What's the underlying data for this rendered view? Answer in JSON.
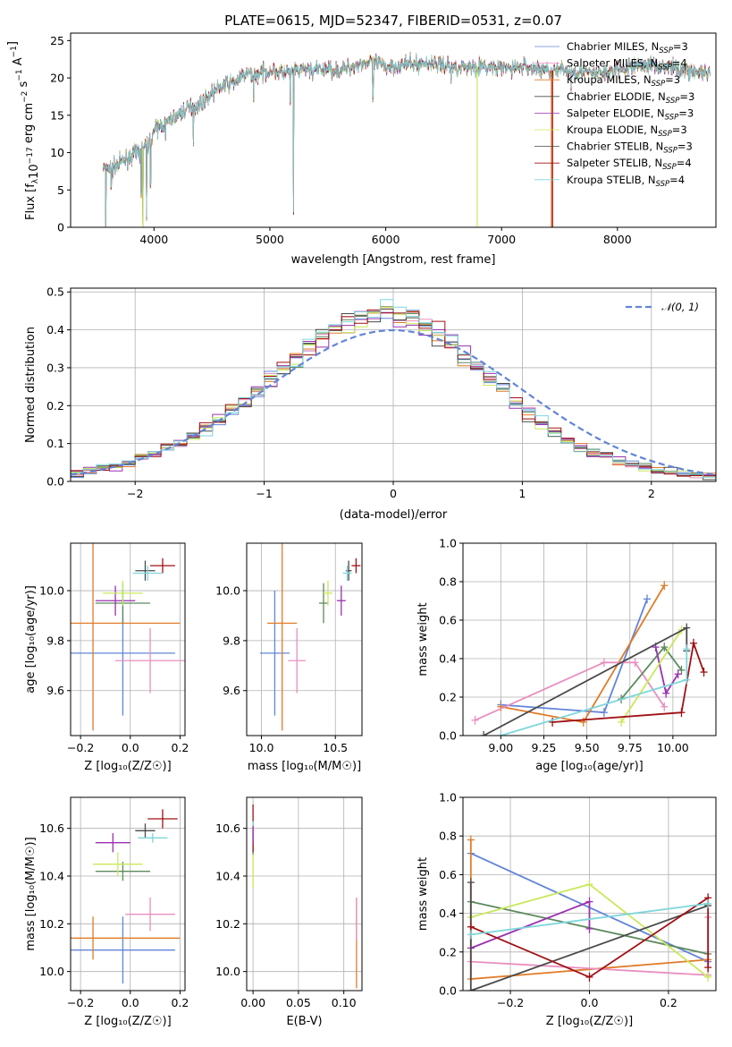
{
  "palette": [
    "#6185d8",
    "#e07b28",
    "#e98fbf",
    "#5c8a5e",
    "#9b30b0",
    "#c9e85a",
    "#4a4a4a",
    "#a01015",
    "#7ed6db"
  ],
  "chart_data": [
    {
      "id": "spectrum",
      "type": "line",
      "title": "PLATE=0615, MJD=52347, FIBERID=0531, z=0.07",
      "xlabel": "wavelength [Angstrom, rest frame]",
      "ylabel_main": "Flux [f",
      "ylabel_sub": "λ",
      "ylabel_mid": "10",
      "ylabel_sup1": "−17",
      "ylabel_rest": " erg cm",
      "ylabel_sup2": "−2",
      "ylabel_rest2": " s",
      "ylabel_sup3": "−1",
      "ylabel_rest3": " A",
      "ylabel_sup4": "−1",
      "ylabel_end": "]",
      "xlim": [
        3280,
        8850
      ],
      "ylim": [
        0,
        26
      ],
      "xticks": [
        "4000",
        "5000",
        "6000",
        "7000",
        "8000"
      ],
      "xtick_values": [
        4000,
        5000,
        6000,
        7000,
        8000
      ],
      "yticks": [
        "0",
        "5",
        "10",
        "15",
        "20",
        "25"
      ],
      "ytick_values": [
        0,
        5,
        10,
        15,
        20,
        25
      ],
      "continuum": {
        "x": [
          3560,
          3650,
          3750,
          3850,
          3950,
          4000,
          4100,
          4200,
          4300,
          4400,
          4500,
          4600,
          4700,
          4800,
          4900,
          5000,
          5100,
          5200,
          5300,
          5400,
          5500,
          5600,
          5700,
          5800,
          5900,
          6000,
          6200,
          6400,
          6600,
          6800,
          7000,
          7200,
          7400,
          7600,
          7800,
          8000,
          8200,
          8400,
          8600,
          8800
        ],
        "y": [
          8,
          8,
          9,
          10,
          11,
          13,
          14,
          15,
          16,
          16.5,
          18,
          19,
          19.5,
          20.5,
          20.5,
          21,
          20.7,
          20.7,
          21.2,
          21,
          21.2,
          21,
          21.5,
          22,
          22,
          21.5,
          21.8,
          22,
          21.5,
          21.5,
          21.2,
          21.5,
          21,
          21,
          20.5,
          21,
          21.8,
          21.6,
          21,
          20.5
        ]
      },
      "legend": [
        {
          "label": "Chabrier MILES, N",
          "sub": "SSP",
          "suffix": "=3"
        },
        {
          "label": "Salpeter MILES, N",
          "sub": "SSP",
          "suffix": "=4"
        },
        {
          "label": "Kroupa MILES, N",
          "sub": "SSP",
          "suffix": "=3"
        },
        {
          "label": "Chabrier ELODIE, N",
          "sub": "SSP",
          "suffix": "=3"
        },
        {
          "label": "Salpeter ELODIE, N",
          "sub": "SSP",
          "suffix": "=3"
        },
        {
          "label": "Kroupa ELODIE, N",
          "sub": "SSP",
          "suffix": "=3"
        },
        {
          "label": "Chabrier STELIB, N",
          "sub": "SSP",
          "suffix": "=3"
        },
        {
          "label": "Salpeter STELIB, N",
          "sub": "SSP",
          "suffix": "=4"
        },
        {
          "label": "Kroupa STELIB, N",
          "sub": "SSP",
          "suffix": "=4"
        }
      ],
      "legend_colors": [
        "#6185d8",
        "#e98fbf",
        "#e07b28",
        "#4a4a4a",
        "#9b30b0",
        "#c9e85a",
        "#4a4a4a",
        "#a01015",
        "#7ed6db"
      ],
      "legend_position": "upper right"
    },
    {
      "id": "residuals",
      "type": "histogram",
      "xlabel": "(data-model)/error",
      "ylabel": "Normed distribution",
      "xlim": [
        -2.5,
        2.5
      ],
      "ylim": [
        0,
        0.51
      ],
      "xticks": [
        "−2",
        "−1",
        "0",
        "1",
        "2"
      ],
      "xtick_values": [
        -2,
        -1,
        0,
        1,
        2
      ],
      "yticks": [
        "0.0",
        "0.1",
        "0.2",
        "0.3",
        "0.4",
        "0.5"
      ],
      "ytick_values": [
        0,
        0.1,
        0.2,
        0.3,
        0.4,
        0.5
      ],
      "bins_start": -2.5,
      "bin_width": 0.1,
      "base_density": [
        0.02,
        0.03,
        0.035,
        0.04,
        0.05,
        0.06,
        0.07,
        0.085,
        0.1,
        0.12,
        0.14,
        0.16,
        0.19,
        0.21,
        0.24,
        0.27,
        0.3,
        0.32,
        0.35,
        0.38,
        0.4,
        0.42,
        0.43,
        0.44,
        0.45,
        0.44,
        0.43,
        0.41,
        0.39,
        0.36,
        0.33,
        0.3,
        0.27,
        0.24,
        0.21,
        0.18,
        0.15,
        0.13,
        0.11,
        0.09,
        0.08,
        0.065,
        0.055,
        0.045,
        0.035,
        0.03,
        0.025,
        0.02,
        0.018,
        0.015
      ],
      "normal_label": "𝒩(0, 1)",
      "legend_position": "upper right"
    },
    {
      "id": "age-vs-Z",
      "type": "errorbar",
      "xlabel": "Z [log₁₀(Z/Z☉)]",
      "ylabel": "age  [log₁₀(age/yr)]",
      "xlim": [
        -0.24,
        0.22
      ],
      "ylim": [
        9.42,
        10.19
      ],
      "xticks": [
        "−0.2",
        "0.0",
        "0.2"
      ],
      "xtick_values": [
        -0.2,
        0,
        0.2
      ],
      "yticks": [
        "9.6",
        "9.8",
        "10.0"
      ],
      "ytick_values": [
        9.6,
        9.8,
        10.0
      ],
      "points": [
        {
          "x": -0.03,
          "y": 9.75,
          "xerr": 0.21,
          "yerr": 0.25,
          "c": 0
        },
        {
          "x": -0.15,
          "y": 9.87,
          "xerr": 0.35,
          "yerr": 0.43,
          "c": 1
        },
        {
          "x": 0.08,
          "y": 9.72,
          "xerr": 0.14,
          "yerr": 0.13,
          "c": 2
        },
        {
          "x": -0.03,
          "y": 9.95,
          "xerr": 0.11,
          "yerr": 0.08,
          "c": 3
        },
        {
          "x": -0.06,
          "y": 9.96,
          "xerr": 0.08,
          "yerr": 0.06,
          "c": 4
        },
        {
          "x": -0.03,
          "y": 9.99,
          "xerr": 0.08,
          "yerr": 0.05,
          "c": 5
        },
        {
          "x": 0.06,
          "y": 10.08,
          "xerr": 0.04,
          "yerr": 0.04,
          "c": 6
        },
        {
          "x": 0.13,
          "y": 10.1,
          "xerr": 0.05,
          "yerr": 0.03,
          "c": 7
        },
        {
          "x": 0.07,
          "y": 10.07,
          "xerr": 0.06,
          "yerr": 0.03,
          "c": 8
        }
      ]
    },
    {
      "id": "age-vs-mass",
      "type": "errorbar",
      "xlabel": "mass [log₁₀(M/M☉)]",
      "ylabel": "",
      "xlim": [
        9.9,
        10.68
      ],
      "ylim": [
        9.42,
        10.19
      ],
      "xticks": [
        "10.0",
        "10.5"
      ],
      "xtick_values": [
        10,
        10.5
      ],
      "yticks": [
        "9.6",
        "9.8",
        "10.0"
      ],
      "ytick_values": [
        9.6,
        9.8,
        10.0
      ],
      "points": [
        {
          "x": 10.09,
          "y": 9.75,
          "xerr": 0.1,
          "yerr": 0.25,
          "c": 0
        },
        {
          "x": 10.14,
          "y": 9.87,
          "xerr": 0.1,
          "yerr": 0.43,
          "c": 1
        },
        {
          "x": 10.24,
          "y": 9.72,
          "xerr": 0.06,
          "yerr": 0.13,
          "c": 2
        },
        {
          "x": 10.42,
          "y": 9.95,
          "xerr": 0.03,
          "yerr": 0.08,
          "c": 3
        },
        {
          "x": 10.54,
          "y": 9.96,
          "xerr": 0.03,
          "yerr": 0.06,
          "c": 4
        },
        {
          "x": 10.45,
          "y": 9.99,
          "xerr": 0.03,
          "yerr": 0.05,
          "c": 5
        },
        {
          "x": 10.59,
          "y": 10.08,
          "xerr": 0.02,
          "yerr": 0.04,
          "c": 6
        },
        {
          "x": 10.64,
          "y": 10.1,
          "xerr": 0.03,
          "yerr": 0.03,
          "c": 7
        },
        {
          "x": 10.58,
          "y": 10.07,
          "xerr": 0.03,
          "yerr": 0.03,
          "c": 8
        }
      ]
    },
    {
      "id": "weight-vs-age",
      "type": "line",
      "xlabel": "age  [log₁₀(age/yr)]",
      "ylabel": "mass weight",
      "xlim": [
        8.78,
        10.25
      ],
      "ylim": [
        0,
        1
      ],
      "xticks": [
        "9.00",
        "9.25",
        "9.50",
        "9.75",
        "10.00"
      ],
      "xtick_values": [
        9,
        9.25,
        9.5,
        9.75,
        10
      ],
      "yticks": [
        "0.0",
        "0.2",
        "0.4",
        "0.6",
        "0.8",
        "1.0"
      ],
      "ytick_values": [
        0,
        0.2,
        0.4,
        0.6,
        0.8,
        1
      ],
      "series": [
        {
          "c": 0,
          "x": [
            9.0,
            9.6,
            9.85
          ],
          "y": [
            0.16,
            0.12,
            0.71
          ]
        },
        {
          "c": 1,
          "x": [
            9.0,
            9.48,
            9.95
          ],
          "y": [
            0.15,
            0.07,
            0.78
          ]
        },
        {
          "c": 2,
          "x": [
            8.85,
            9.6,
            9.78,
            9.95
          ],
          "y": [
            0.08,
            0.38,
            0.38,
            0.15
          ]
        },
        {
          "c": 3,
          "x": [
            9.7,
            9.95,
            10.05
          ],
          "y": [
            0.19,
            0.46,
            0.34
          ]
        },
        {
          "c": 4,
          "x": [
            9.9,
            9.96,
            10.03
          ],
          "y": [
            0.46,
            0.22,
            0.32
          ]
        },
        {
          "c": 5,
          "x": [
            9.7,
            10.05
          ],
          "y": [
            0.07,
            0.55
          ]
        },
        {
          "c": 6,
          "x": [
            8.9,
            10.08,
            10.08
          ],
          "y": [
            0.0,
            0.56,
            0.44
          ]
        },
        {
          "c": 7,
          "x": [
            9.3,
            10.05,
            10.12,
            10.18
          ],
          "y": [
            0.07,
            0.12,
            0.48,
            0.33
          ]
        },
        {
          "c": 8,
          "x": [
            9.0,
            10.08,
            10.08
          ],
          "y": [
            0.0,
            0.29,
            0.45
          ]
        }
      ]
    },
    {
      "id": "mass-vs-Z",
      "type": "errorbar",
      "xlabel": "Z [log₁₀(Z/Z☉)]",
      "ylabel": "mass [log₁₀(M/M☉)]",
      "xlim": [
        -0.24,
        0.22
      ],
      "ylim": [
        9.92,
        10.73
      ],
      "xticks": [
        "−0.2",
        "0.0",
        "0.2"
      ],
      "xtick_values": [
        -0.2,
        0,
        0.2
      ],
      "yticks": [
        "10.0",
        "10.2",
        "10.4",
        "10.6"
      ],
      "ytick_values": [
        10,
        10.2,
        10.4,
        10.6
      ],
      "points": [
        {
          "x": -0.03,
          "y": 10.09,
          "xerr": 0.21,
          "yerr": 0.14,
          "c": 0
        },
        {
          "x": -0.15,
          "y": 10.14,
          "xerr": 0.35,
          "yerr": 0.09,
          "c": 1
        },
        {
          "x": 0.08,
          "y": 10.24,
          "xerr": 0.1,
          "yerr": 0.07,
          "c": 2
        },
        {
          "x": -0.03,
          "y": 10.42,
          "xerr": 0.11,
          "yerr": 0.04,
          "c": 3
        },
        {
          "x": -0.07,
          "y": 10.54,
          "xerr": 0.07,
          "yerr": 0.04,
          "c": 4
        },
        {
          "x": -0.05,
          "y": 10.45,
          "xerr": 0.1,
          "yerr": 0.05,
          "c": 5
        },
        {
          "x": 0.06,
          "y": 10.59,
          "xerr": 0.04,
          "yerr": 0.03,
          "c": 6
        },
        {
          "x": 0.13,
          "y": 10.64,
          "xerr": 0.06,
          "yerr": 0.04,
          "c": 7
        },
        {
          "x": 0.09,
          "y": 10.56,
          "xerr": 0.06,
          "yerr": 0.02,
          "c": 8
        }
      ]
    },
    {
      "id": "mass-vs-ebv",
      "type": "errorbar",
      "xlabel": "E(B-V)",
      "ylabel": "",
      "xlim": [
        -0.007,
        0.12
      ],
      "ylim": [
        9.92,
        10.73
      ],
      "xticks": [
        "0.00",
        "0.05",
        "0.10"
      ],
      "xtick_values": [
        0,
        0.05,
        0.1
      ],
      "yticks": [
        "10.0",
        "10.2",
        "10.4",
        "10.6"
      ],
      "ytick_values": [
        10,
        10.2,
        10.4,
        10.6
      ],
      "points": [
        {
          "x": 0.114,
          "y": 10.12,
          "xerr": 0,
          "yerr": 0.19,
          "c": 1
        },
        {
          "x": 0.114,
          "y": 10.22,
          "xerr": 0,
          "yerr": 0.09,
          "c": 2
        },
        {
          "x": 0.0,
          "y": 10.42,
          "xerr": 0,
          "yerr": 0.07,
          "c": 5
        },
        {
          "x": 0.0,
          "y": 10.54,
          "xerr": 0,
          "yerr": 0.05,
          "c": 3
        },
        {
          "x": 0.0,
          "y": 10.6,
          "xerr": 0,
          "yerr": 0.1,
          "c": 7
        },
        {
          "x": 0.0,
          "y": 10.59,
          "xerr": 0,
          "yerr": 0.04,
          "c": 8
        },
        {
          "x": 0.0,
          "y": 10.57,
          "xerr": 0,
          "yerr": 0.04,
          "c": 4
        }
      ]
    },
    {
      "id": "weight-vs-Z",
      "type": "line",
      "xlabel": "Z [log₁₀(Z/Z☉)]",
      "ylabel": "mass weight",
      "xlim": [
        -0.32,
        0.32
      ],
      "ylim": [
        0,
        1
      ],
      "xticks": [
        "−0.2",
        "0.0",
        "0.2"
      ],
      "xtick_values": [
        -0.2,
        0,
        0.2
      ],
      "yticks": [
        "0.0",
        "0.2",
        "0.4",
        "0.6",
        "0.8",
        "1.0"
      ],
      "ytick_values": [
        0,
        0.2,
        0.4,
        0.6,
        0.8,
        1
      ],
      "series": [
        {
          "c": 0,
          "x": [
            -0.3,
            0.3
          ],
          "y": [
            0.71,
            0.15
          ]
        },
        {
          "c": 1,
          "x": [
            -0.3,
            -0.3,
            0.3
          ],
          "y": [
            0.78,
            0.06,
            0.16
          ]
        },
        {
          "c": 2,
          "x": [
            -0.3,
            0.3,
            0.3
          ],
          "y": [
            0.15,
            0.08,
            0.38
          ]
        },
        {
          "c": 3,
          "x": [
            -0.3,
            0.3
          ],
          "y": [
            0.46,
            0.19
          ]
        },
        {
          "c": 4,
          "x": [
            -0.3,
            0.0,
            0.0
          ],
          "y": [
            0.22,
            0.46,
            0.32
          ]
        },
        {
          "c": 5,
          "x": [
            -0.3,
            0.0,
            0.3
          ],
          "y": [
            0.38,
            0.55,
            0.07
          ]
        },
        {
          "c": 6,
          "x": [
            -0.3,
            -0.3,
            0.3
          ],
          "y": [
            0.56,
            0.0,
            0.44
          ]
        },
        {
          "c": 7,
          "x": [
            -0.3,
            0.0,
            0.3,
            0.3
          ],
          "y": [
            0.33,
            0.07,
            0.48,
            0.12
          ]
        },
        {
          "c": 8,
          "x": [
            -0.3,
            0.3
          ],
          "y": [
            0.29,
            0.45
          ]
        }
      ]
    }
  ]
}
